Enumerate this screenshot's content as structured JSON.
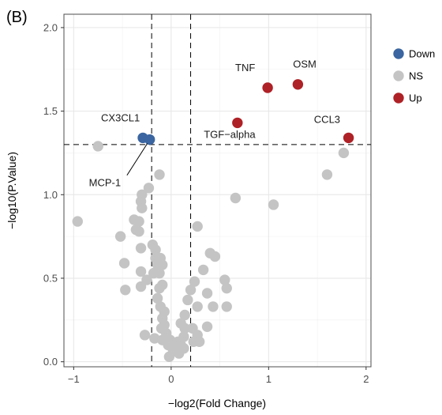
{
  "panel_label": "(B)",
  "chart_data": {
    "type": "scatter",
    "title": "",
    "xlabel": "−log2(Fold Change)",
    "ylabel": "−log10(P.Value)",
    "xlim": [
      -1.1,
      2.05
    ],
    "ylim": [
      -0.03,
      2.08
    ],
    "xticks": [
      -1,
      0,
      1,
      2
    ],
    "yticks": [
      0.0,
      0.5,
      1.0,
      1.5,
      2.0
    ],
    "xtick_labels": [
      "−1",
      "0",
      "1",
      "2"
    ],
    "ytick_labels": [
      "0.0",
      "0.5",
      "1.0",
      "1.5",
      "2.0"
    ],
    "grid": true,
    "threshold_lines": {
      "x": [
        -0.2,
        0.2
      ],
      "y": 1.3
    },
    "legend": {
      "placement": "right",
      "entries": [
        {
          "name": "Down",
          "color": "#3a65a0"
        },
        {
          "name": "NS",
          "color": "#c4c4c4"
        },
        {
          "name": "Up",
          "color": "#ae2126"
        }
      ]
    },
    "series": [
      {
        "name": "Down",
        "color": "#3a65a0",
        "points": [
          {
            "x": -0.29,
            "y": 1.34
          },
          {
            "x": -0.22,
            "y": 1.33
          }
        ]
      },
      {
        "name": "Up",
        "color": "#ae2126",
        "points": [
          {
            "x": 0.99,
            "y": 1.64
          },
          {
            "x": 1.3,
            "y": 1.66
          },
          {
            "x": 0.68,
            "y": 1.43
          },
          {
            "x": 1.82,
            "y": 1.34
          }
        ]
      },
      {
        "name": "NS",
        "color": "#c4c4c4",
        "points": [
          {
            "x": -0.75,
            "y": 1.29
          },
          {
            "x": 1.77,
            "y": 1.25
          },
          {
            "x": 1.6,
            "y": 1.12
          },
          {
            "x": -0.12,
            "y": 1.12
          },
          {
            "x": 0.66,
            "y": 0.98
          },
          {
            "x": 1.05,
            "y": 0.94
          },
          {
            "x": -0.96,
            "y": 0.84
          },
          {
            "x": -0.23,
            "y": 1.04
          },
          {
            "x": -0.3,
            "y": 1.0
          },
          {
            "x": -0.31,
            "y": 0.96
          },
          {
            "x": -0.3,
            "y": 0.92
          },
          {
            "x": -0.38,
            "y": 0.85
          },
          {
            "x": -0.33,
            "y": 0.84
          },
          {
            "x": -0.36,
            "y": 0.79
          },
          {
            "x": -0.33,
            "y": 0.78
          },
          {
            "x": -0.52,
            "y": 0.75
          },
          {
            "x": -0.31,
            "y": 0.68
          },
          {
            "x": -0.19,
            "y": 0.7
          },
          {
            "x": -0.16,
            "y": 0.67
          },
          {
            "x": -0.16,
            "y": 0.62
          },
          {
            "x": -0.11,
            "y": 0.62
          },
          {
            "x": -0.14,
            "y": 0.58
          },
          {
            "x": -0.09,
            "y": 0.58
          },
          {
            "x": -0.48,
            "y": 0.59
          },
          {
            "x": -0.31,
            "y": 0.54
          },
          {
            "x": -0.18,
            "y": 0.53
          },
          {
            "x": -0.12,
            "y": 0.53
          },
          {
            "x": -0.25,
            "y": 0.49
          },
          {
            "x": -0.09,
            "y": 0.46
          },
          {
            "x": -0.12,
            "y": 0.44
          },
          {
            "x": -0.31,
            "y": 0.45
          },
          {
            "x": -0.47,
            "y": 0.43
          },
          {
            "x": -0.14,
            "y": 0.38
          },
          {
            "x": -0.11,
            "y": 0.33
          },
          {
            "x": -0.07,
            "y": 0.3
          },
          {
            "x": -0.09,
            "y": 0.26
          },
          {
            "x": -0.07,
            "y": 0.22
          },
          {
            "x": -0.1,
            "y": 0.2
          },
          {
            "x": -0.05,
            "y": 0.17
          },
          {
            "x": -0.01,
            "y": 0.13
          },
          {
            "x": -0.03,
            "y": 0.1
          },
          {
            "x": 0.02,
            "y": 0.07
          },
          {
            "x": -0.02,
            "y": 0.03
          },
          {
            "x": 0.07,
            "y": 0.12
          },
          {
            "x": 0.1,
            "y": 0.1
          },
          {
            "x": 0.13,
            "y": 0.08
          },
          {
            "x": 0.08,
            "y": 0.05
          },
          {
            "x": 0.03,
            "y": 0.09
          },
          {
            "x": -0.09,
            "y": 0.13
          },
          {
            "x": 0.14,
            "y": 0.2
          },
          {
            "x": 0.1,
            "y": 0.23
          },
          {
            "x": 0.14,
            "y": 0.28
          },
          {
            "x": 0.17,
            "y": 0.37
          },
          {
            "x": 0.2,
            "y": 0.43
          },
          {
            "x": 0.24,
            "y": 0.48
          },
          {
            "x": 0.27,
            "y": 0.33
          },
          {
            "x": 0.22,
            "y": 0.2
          },
          {
            "x": 0.27,
            "y": 0.16
          },
          {
            "x": 0.23,
            "y": 0.12
          },
          {
            "x": 0.13,
            "y": 0.15
          },
          {
            "x": 0.33,
            "y": 0.55
          },
          {
            "x": 0.4,
            "y": 0.65
          },
          {
            "x": 0.45,
            "y": 0.63
          },
          {
            "x": 0.37,
            "y": 0.41
          },
          {
            "x": 0.43,
            "y": 0.33
          },
          {
            "x": 0.55,
            "y": 0.49
          },
          {
            "x": 0.57,
            "y": 0.44
          },
          {
            "x": 0.57,
            "y": 0.33
          },
          {
            "x": 0.37,
            "y": 0.21
          },
          {
            "x": 0.27,
            "y": 0.81
          },
          {
            "x": -0.17,
            "y": 0.14
          },
          {
            "x": -0.27,
            "y": 0.16
          },
          {
            "x": 0.29,
            "y": 0.12
          }
        ]
      }
    ],
    "annotations": [
      {
        "text": "CX3CL1",
        "x": -0.29,
        "y": 1.34,
        "label_x": -0.52,
        "label_y": 1.44
      },
      {
        "text": "MCP-1",
        "x": -0.22,
        "y": 1.33,
        "label_x": -0.68,
        "label_y": 1.05
      },
      {
        "text": "TNF",
        "x": 0.99,
        "y": 1.64,
        "label_x": 0.76,
        "label_y": 1.74
      },
      {
        "text": "OSM",
        "x": 1.3,
        "y": 1.66,
        "label_x": 1.37,
        "label_y": 1.76
      },
      {
        "text": "TGF−alpha",
        "x": 0.68,
        "y": 1.43,
        "label_x": 0.6,
        "label_y": 1.34
      },
      {
        "text": "CCL3",
        "x": 1.82,
        "y": 1.34,
        "label_x": 1.6,
        "label_y": 1.43
      }
    ]
  }
}
